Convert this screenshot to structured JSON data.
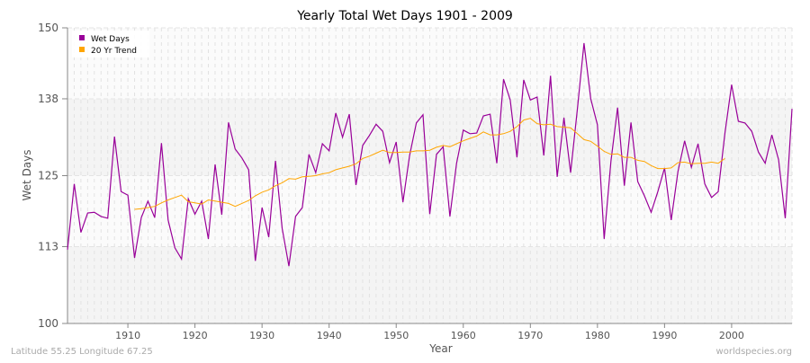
{
  "chart_data": {
    "type": "line",
    "title": "Yearly Total Wet Days 1901 - 2009",
    "xlabel": "Year",
    "ylabel": "Wet Days",
    "xlim": [
      1901,
      2009
    ],
    "ylim": [
      100,
      150
    ],
    "yticks": [
      100,
      113,
      125,
      138,
      150
    ],
    "xticks": [
      1910,
      1920,
      1930,
      1940,
      1950,
      1960,
      1970,
      1980,
      1990,
      2000
    ],
    "grid": true,
    "legend_placement": "top-left",
    "series": [
      {
        "name": "Wet Days",
        "color": "#990099",
        "x_start": 1901,
        "values": [
          112.5,
          123.6,
          115.4,
          118.7,
          118.8,
          118.1,
          117.8,
          131.6,
          122.3,
          121.7,
          111.1,
          117.9,
          120.7,
          117.9,
          130.5,
          117.5,
          112.8,
          110.9,
          121.1,
          118.5,
          120.7,
          114.3,
          126.9,
          118.4,
          134.0,
          129.5,
          128.0,
          126.0,
          110.6,
          119.6,
          114.6,
          127.5,
          116.1,
          109.7,
          118.1,
          119.6,
          128.6,
          125.5,
          130.4,
          129.2,
          135.6,
          131.5,
          135.4,
          123.4,
          130.1,
          131.8,
          133.7,
          132.5,
          127.2,
          130.7,
          120.5,
          128.4,
          133.9,
          135.3,
          118.5,
          128.6,
          129.9,
          118.1,
          127.1,
          132.7,
          132.1,
          132.2,
          135.1,
          135.4,
          127.1,
          141.3,
          137.8,
          128.1,
          141.2,
          137.8,
          138.3,
          128.4,
          141.9,
          124.8,
          134.8,
          125.5,
          136.2,
          147.4,
          138.0,
          133.6,
          114.3,
          127.4,
          136.5,
          123.3,
          134.0,
          124.0,
          121.6,
          118.8,
          122.3,
          126.3,
          117.5,
          125.7,
          130.9,
          126.4,
          130.4,
          123.6,
          121.3,
          122.3,
          132.2,
          140.4,
          134.2,
          133.9,
          132.5,
          129.0,
          127.1,
          131.9,
          127.7,
          117.8,
          136.3
        ]
      },
      {
        "name": "20 Yr Trend",
        "color": "#ffa500",
        "x_start": 1911,
        "values": [
          119.3,
          119.4,
          119.6,
          119.8,
          120.4,
          120.9,
          121.3,
          121.7,
          120.6,
          120.4,
          120.2,
          120.9,
          120.7,
          120.5,
          120.3,
          119.8,
          120.3,
          120.8,
          121.6,
          122.2,
          122.6,
          123.3,
          123.8,
          124.5,
          124.4,
          124.8,
          124.9,
          125.0,
          125.3,
          125.5,
          126.0,
          126.3,
          126.6,
          127.0,
          127.9,
          128.3,
          128.8,
          129.3,
          128.9,
          128.9,
          129.0,
          129.0,
          129.2,
          129.2,
          129.3,
          129.8,
          130.1,
          129.9,
          130.4,
          130.9,
          131.3,
          131.7,
          132.4,
          131.9,
          131.9,
          132.1,
          132.5,
          133.3,
          134.4,
          134.7,
          133.8,
          133.6,
          133.7,
          133.3,
          133.2,
          133.1,
          132.1,
          131.1,
          130.8,
          130.0,
          129.1,
          128.6,
          128.7,
          128.1,
          128.1,
          127.6,
          127.4,
          126.7,
          126.2,
          126.2,
          126.3,
          127.2,
          127.3,
          127.0,
          127.1,
          127.1,
          127.3,
          127.1,
          127.9
        ]
      }
    ]
  },
  "footer": {
    "location": "Latitude 55.25 Longitude 67.25",
    "source": "worldspecies.org"
  }
}
